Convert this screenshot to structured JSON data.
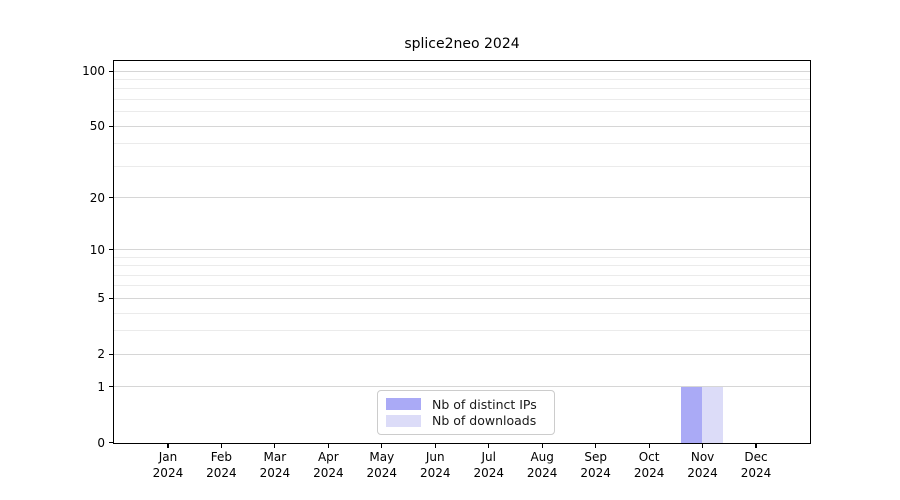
{
  "chart_data": {
    "type": "bar",
    "title": "splice2neo 2024",
    "categories": [
      "Jan 2024",
      "Feb 2024",
      "Mar 2024",
      "Apr 2024",
      "May 2024",
      "Jun 2024",
      "Jul 2024",
      "Aug 2024",
      "Sep 2024",
      "Oct 2024",
      "Nov 2024",
      "Dec 2024"
    ],
    "series": [
      {
        "name": "Nb of distinct IPs",
        "color": "#aaaaf6",
        "values": [
          0,
          0,
          0,
          0,
          0,
          0,
          0,
          0,
          0,
          0,
          1,
          0
        ]
      },
      {
        "name": "Nb of downloads",
        "color": "#dcdcf8",
        "values": [
          0,
          0,
          0,
          0,
          0,
          0,
          0,
          0,
          0,
          0,
          1,
          0
        ]
      }
    ],
    "xlabel": "",
    "ylabel": "",
    "yscale": "log1p",
    "ylim": [
      0,
      113
    ],
    "yticks": [
      0,
      1,
      2,
      5,
      10,
      20,
      50,
      100
    ],
    "minor_gridlines": [
      3,
      4,
      6,
      7,
      8,
      9,
      30,
      40,
      60,
      70,
      80,
      90
    ],
    "grid": true,
    "legend_position": "lower center"
  }
}
